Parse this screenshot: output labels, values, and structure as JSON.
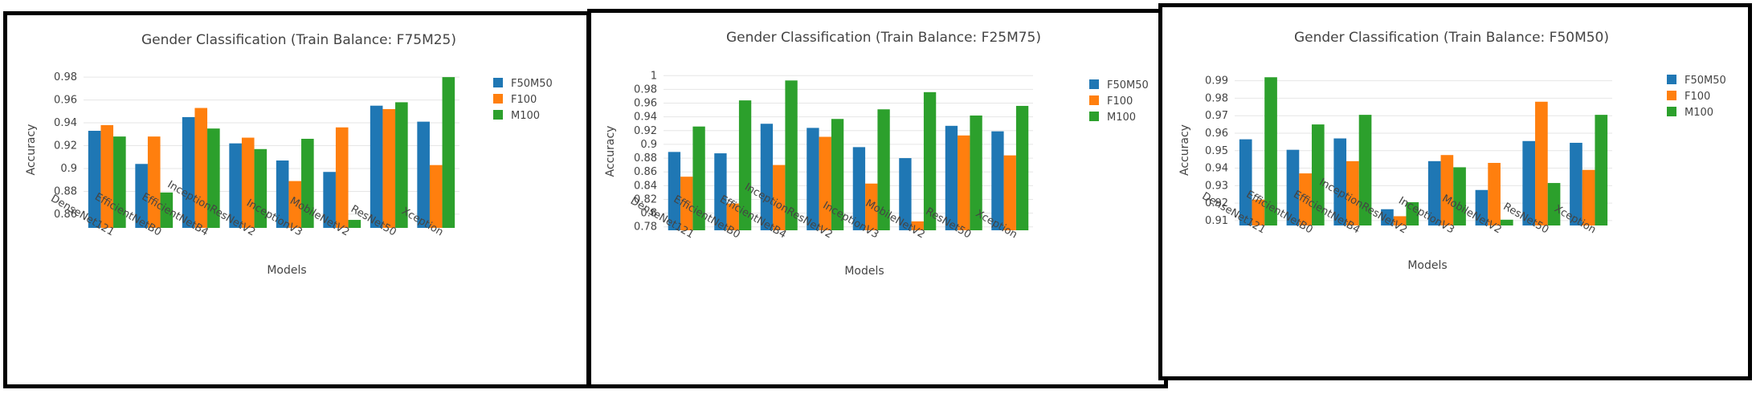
{
  "chart_data": [
    {
      "type": "bar",
      "title": "Gender Classification (Train Balance: F75M25)",
      "xlabel": "Models",
      "ylabel": "Accuracy",
      "ylim": [
        0.848,
        0.985
      ],
      "yticks": [
        0.86,
        0.88,
        0.9,
        0.92,
        0.94,
        0.96,
        0.98
      ],
      "ytick_labels": [
        "0.86",
        "0.88",
        "0.9",
        "0.92",
        "0.94",
        "0.96",
        "0.98"
      ],
      "grid": true,
      "legend_position": "right",
      "categories": [
        "DenseNet121",
        "EfficientNetB0",
        "EfficientNetB4",
        "InceptionResNetV2",
        "InceptionV3",
        "MobileNetV2",
        "ResNet50",
        "Xception"
      ],
      "series": [
        {
          "name": "F50M50",
          "color": "#1f77b4",
          "values": [
            0.933,
            0.904,
            0.945,
            0.922,
            0.907,
            0.897,
            0.955,
            0.941
          ]
        },
        {
          "name": "F100",
          "color": "#ff7f0e",
          "values": [
            0.938,
            0.928,
            0.953,
            0.927,
            0.889,
            0.936,
            0.952,
            0.903
          ]
        },
        {
          "name": "M100",
          "color": "#2ca02c",
          "values": [
            0.928,
            0.879,
            0.935,
            0.917,
            0.926,
            0.855,
            0.958,
            0.98
          ]
        }
      ]
    },
    {
      "type": "bar",
      "title": "Gender Classification (Train Balance: F25M75)",
      "xlabel": "Models",
      "ylabel": "Accuracy",
      "ylim": [
        0.775,
        1.005
      ],
      "yticks": [
        0.78,
        0.8,
        0.82,
        0.84,
        0.86,
        0.88,
        0.9,
        0.92,
        0.94,
        0.96,
        0.98,
        1.0
      ],
      "ytick_labels": [
        "0.78",
        "0.8",
        "0.82",
        "0.84",
        "0.86",
        "0.88",
        "0.9",
        "0.92",
        "0.94",
        "0.96",
        "0.98",
        "1"
      ],
      "grid": true,
      "legend_position": "right",
      "categories": [
        "DenseNet121",
        "EfficientNetB0",
        "EfficientNetB4",
        "InceptionResNetV2",
        "InceptionV3",
        "MobileNetV2",
        "ResNet50",
        "Xception"
      ],
      "series": [
        {
          "name": "F50M50",
          "color": "#1f77b4",
          "values": [
            0.889,
            0.887,
            0.93,
            0.924,
            0.896,
            0.88,
            0.927,
            0.919
          ]
        },
        {
          "name": "F100",
          "color": "#ff7f0e",
          "values": [
            0.853,
            0.814,
            0.87,
            0.911,
            0.843,
            0.788,
            0.913,
            0.884
          ]
        },
        {
          "name": "M100",
          "color": "#2ca02c",
          "values": [
            0.926,
            0.964,
            0.993,
            0.937,
            0.951,
            0.976,
            0.942,
            0.956
          ]
        }
      ]
    },
    {
      "type": "bar",
      "title": "Gender Classification (Train Balance: F50M50)",
      "xlabel": "Models",
      "ylabel": "Accuracy",
      "ylim": [
        0.9072,
        0.9935
      ],
      "yticks": [
        0.91,
        0.92,
        0.93,
        0.94,
        0.95,
        0.96,
        0.97,
        0.98,
        0.99
      ],
      "ytick_labels": [
        "0.91",
        "0.92",
        "0.93",
        "0.94",
        "0.95",
        "0.96",
        "0.97",
        "0.98",
        "0.99"
      ],
      "grid": true,
      "legend_position": "right",
      "categories": [
        "DenseNet121",
        "EfficientNetB0",
        "EfficientNetB4",
        "InceptionResNetV2",
        "InceptionV3",
        "MobileNetV2",
        "ResNet50",
        "Xception"
      ],
      "series": [
        {
          "name": "F50M50",
          "color": "#1f77b4",
          "values": [
            0.9565,
            0.9505,
            0.957,
            0.9165,
            0.944,
            0.9275,
            0.9555,
            0.9545
          ]
        },
        {
          "name": "F100",
          "color": "#ff7f0e",
          "values": [
            0.922,
            0.937,
            0.944,
            0.9125,
            0.9475,
            0.943,
            0.978,
            0.939
          ]
        },
        {
          "name": "M100",
          "color": "#2ca02c",
          "values": [
            0.992,
            0.965,
            0.9705,
            0.9205,
            0.9405,
            0.9105,
            0.9315,
            0.9705
          ]
        }
      ]
    }
  ]
}
